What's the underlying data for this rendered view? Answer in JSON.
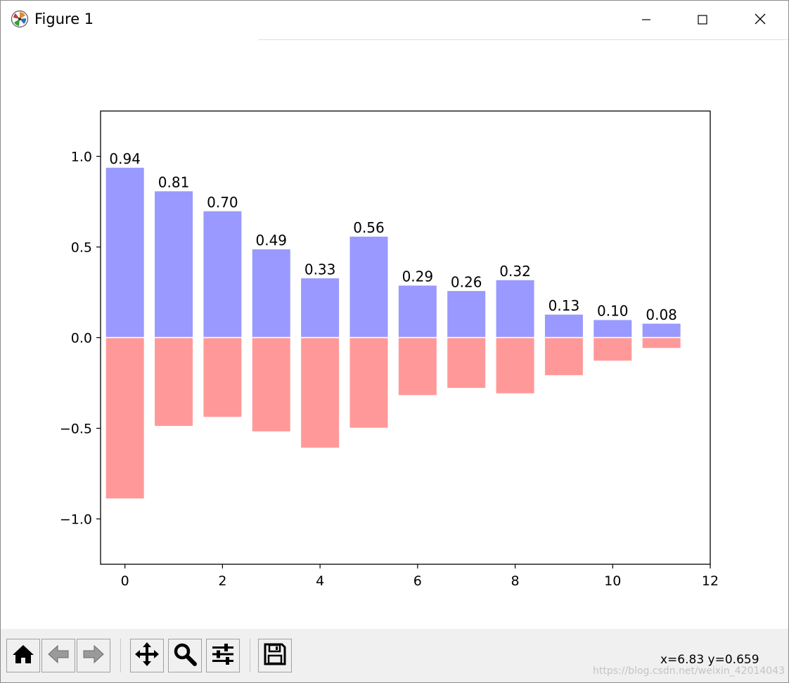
{
  "window": {
    "title": "Figure 1",
    "icons": {
      "app": "matplotlib-logo-icon",
      "minimize": "minimize-icon",
      "maximize": "maximize-icon",
      "close": "close-icon"
    }
  },
  "toolbar": {
    "buttons": [
      {
        "name": "home-button",
        "icon": "home-icon"
      },
      {
        "name": "back-button",
        "icon": "arrow-left-icon"
      },
      {
        "name": "forward-button",
        "icon": "arrow-right-icon"
      },
      {
        "name": "pan-button",
        "icon": "move-icon"
      },
      {
        "name": "zoom-button",
        "icon": "magnifier-icon"
      },
      {
        "name": "configure-subplots-button",
        "icon": "sliders-icon"
      },
      {
        "name": "save-button",
        "icon": "floppy-disk-icon"
      }
    ],
    "coords": "x=6.83 y=0.659",
    "watermark": "https://blog.csdn.net/weixin_42014043"
  },
  "chart_data": {
    "type": "bar",
    "title": "",
    "xlabel": "",
    "ylabel": "",
    "xlim": [
      -0.5,
      12
    ],
    "ylim": [
      -1.25,
      1.25
    ],
    "xticks": [
      0,
      2,
      4,
      6,
      8,
      10,
      12
    ],
    "yticks": [
      1.0,
      0.5,
      0.0,
      -0.5,
      -1.0
    ],
    "xtick_labels": [
      "0",
      "2",
      "4",
      "6",
      "8",
      "10",
      "12"
    ],
    "ytick_labels": [
      "1.0",
      "0.5",
      "0.0",
      "−0.5",
      "−1.0"
    ],
    "grid": false,
    "bar_width": 0.8,
    "x": [
      0,
      1,
      2,
      3,
      4,
      5,
      6,
      7,
      8,
      9,
      10,
      11
    ],
    "series": [
      {
        "color": "#9999ff",
        "edgecolor": "#ffffff",
        "values": [
          0.94,
          0.81,
          0.7,
          0.49,
          0.33,
          0.56,
          0.29,
          0.26,
          0.32,
          0.13,
          0.1,
          0.08
        ],
        "labels": [
          "0.94",
          "0.81",
          "0.70",
          "0.49",
          "0.33",
          "0.56",
          "0.29",
          "0.26",
          "0.32",
          "0.13",
          "0.10",
          "0.08"
        ]
      },
      {
        "color": "#ff9999",
        "edgecolor": "#ffffff",
        "values": [
          -0.89,
          -0.49,
          -0.44,
          -0.52,
          -0.61,
          -0.5,
          -0.32,
          -0.28,
          -0.31,
          -0.21,
          -0.13,
          -0.06
        ]
      }
    ]
  }
}
